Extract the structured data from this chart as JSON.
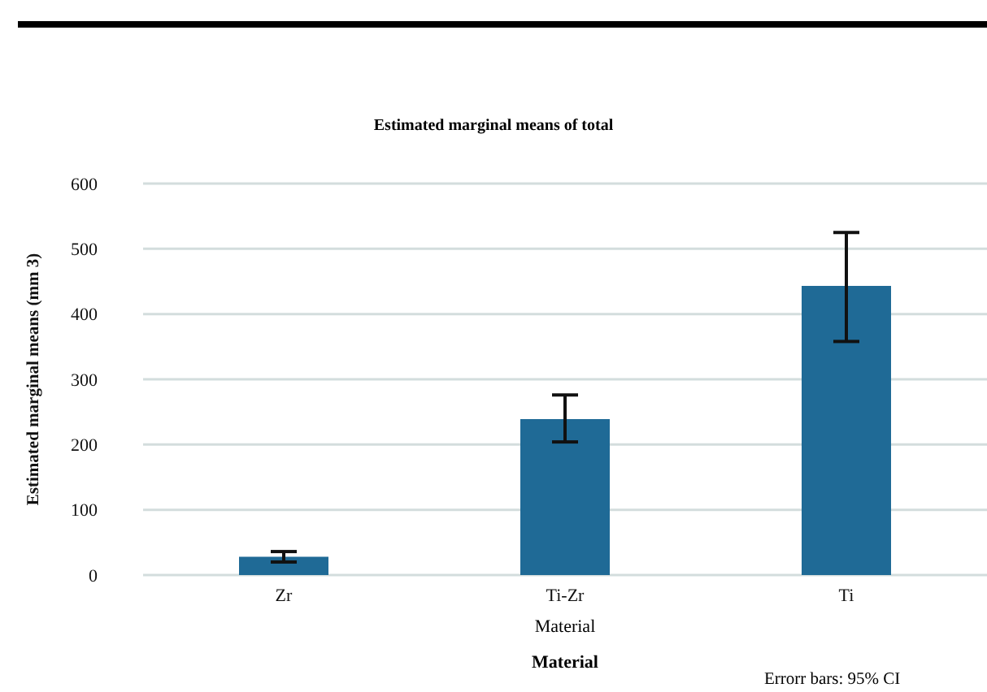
{
  "chart_data": {
    "type": "bar",
    "title": "Estimated marginal means of total",
    "xlabel": "Material",
    "ylabel": "Estimated marginal means (mm 3)",
    "categories": [
      "Zr",
      "Ti-Zr",
      "Ti"
    ],
    "values": [
      28,
      239,
      443
    ],
    "errors": [
      [
        20,
        36
      ],
      [
        204,
        276
      ],
      [
        358,
        525
      ]
    ],
    "color": "#1f6a96",
    "ylim": [
      0,
      600
    ],
    "yticks": [
      0,
      100,
      200,
      300,
      400,
      500,
      600
    ],
    "grid": "y",
    "annotations": [
      "Material",
      "Errorr bars: 95% CI"
    ]
  }
}
